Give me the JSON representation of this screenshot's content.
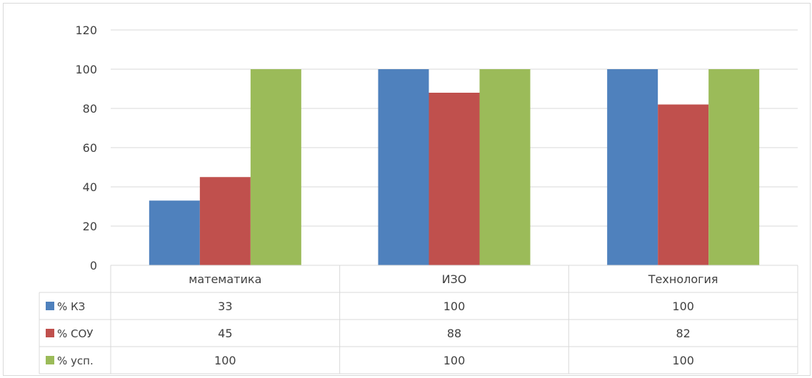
{
  "chart_data": {
    "type": "bar",
    "categories": [
      "математика",
      "ИЗО",
      "Технология"
    ],
    "series": [
      {
        "name": "% КЗ",
        "color": "#4f81bd",
        "values": [
          33,
          100,
          100
        ]
      },
      {
        "name": "% СОУ",
        "color": "#c0504d",
        "values": [
          45,
          88,
          82
        ]
      },
      {
        "name": "% усп.",
        "color": "#9bbb59",
        "values": [
          100,
          100,
          100
        ]
      }
    ],
    "table_values": [
      [
        "33",
        "100",
        "100"
      ],
      [
        "45",
        "88",
        "82"
      ],
      [
        "100",
        "100",
        "100"
      ]
    ],
    "ylim": [
      0,
      120
    ],
    "yticks": [
      0,
      20,
      40,
      60,
      80,
      100,
      120
    ],
    "grid": true,
    "legend": "data-table-left"
  }
}
